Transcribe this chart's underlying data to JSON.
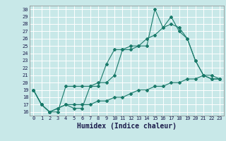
{
  "xlabel": "Humidex (Indice chaleur)",
  "xlim": [
    -0.5,
    23.5
  ],
  "ylim": [
    15.5,
    30.5
  ],
  "xticks": [
    0,
    1,
    2,
    3,
    4,
    5,
    6,
    7,
    8,
    9,
    10,
    11,
    12,
    13,
    14,
    15,
    16,
    17,
    18,
    19,
    20,
    21,
    22,
    23
  ],
  "yticks": [
    16,
    17,
    18,
    19,
    20,
    21,
    22,
    23,
    24,
    25,
    26,
    27,
    28,
    29,
    30
  ],
  "bg_color": "#c8e8e8",
  "grid_color": "#ffffff",
  "line_color": "#1a7a6a",
  "line1_x": [
    0,
    1,
    2,
    3,
    4,
    5,
    6,
    7,
    8,
    9,
    10,
    11,
    12,
    13,
    14,
    15,
    16,
    17,
    18,
    19,
    20,
    21,
    22,
    23
  ],
  "line1_y": [
    19,
    17,
    16,
    16,
    19.5,
    19.5,
    19.5,
    19.5,
    20,
    20,
    21,
    24.5,
    24.5,
    25,
    26,
    26.5,
    27.5,
    28,
    27.5,
    26,
    23,
    21,
    20.5,
    20.5
  ],
  "line2_x": [
    0,
    1,
    2,
    3,
    4,
    5,
    6,
    7,
    8,
    9,
    10,
    11,
    12,
    13,
    14,
    15,
    16,
    17,
    18,
    19,
    20,
    21,
    22,
    23
  ],
  "line2_y": [
    19,
    17,
    16,
    16.5,
    17,
    16.5,
    16.5,
    19.5,
    19.5,
    22.5,
    24.5,
    24.5,
    25,
    25,
    25,
    30,
    27.5,
    29,
    27,
    26,
    23,
    21,
    20.5,
    20.5
  ],
  "line3_x": [
    0,
    1,
    2,
    3,
    4,
    5,
    6,
    7,
    8,
    9,
    10,
    11,
    12,
    13,
    14,
    15,
    16,
    17,
    18,
    19,
    20,
    21,
    22,
    23
  ],
  "line3_y": [
    19,
    17,
    16,
    16.5,
    17,
    17,
    17,
    17,
    17.5,
    17.5,
    18,
    18,
    18.5,
    19,
    19,
    19.5,
    19.5,
    20,
    20,
    20.5,
    20.5,
    21,
    21,
    20.5
  ],
  "tick_fontsize": 5,
  "xlabel_fontsize": 7
}
